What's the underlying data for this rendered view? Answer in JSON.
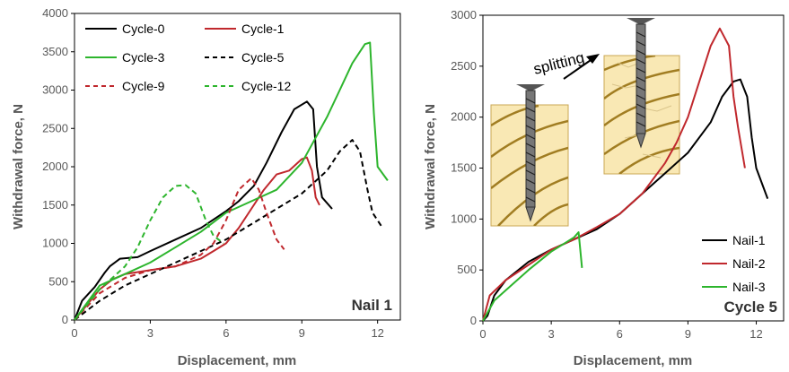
{
  "colors": {
    "black": "#000000",
    "red": "#c0282d",
    "green": "#2db52d",
    "wood": "#f9e8b4",
    "ring": "#a17d22",
    "nail": "#555555"
  },
  "chart_data": [
    {
      "type": "line",
      "corner_label": "Nail 1",
      "xlabel": "Displacement, mm",
      "ylabel": "Withdrawal force, N",
      "xlim": [
        0,
        12.9
      ],
      "ylim": [
        0,
        4000
      ],
      "xticks": [
        0,
        3,
        6,
        9,
        12
      ],
      "yticks": [
        0,
        500,
        1000,
        1500,
        2000,
        2500,
        3000,
        3500,
        4000
      ],
      "grid": false,
      "legend": "top-left, three rows of two",
      "series": [
        {
          "name": "Cycle-0",
          "color": "#000000",
          "dash": "solid",
          "x": [
            0,
            0.3,
            0.8,
            1.2,
            1.4,
            1.8,
            2.5,
            3,
            4,
            5,
            6,
            6.5,
            6.8,
            7.1,
            7.6,
            8.2,
            8.7,
            9.2,
            9.45,
            9.6,
            9.8,
            10.2
          ],
          "y": [
            0,
            250,
            430,
            620,
            700,
            800,
            820,
            900,
            1050,
            1200,
            1420,
            1550,
            1650,
            1750,
            2050,
            2450,
            2750,
            2850,
            2750,
            2000,
            1600,
            1450
          ]
        },
        {
          "name": "Cycle-1",
          "color": "#c0282d",
          "dash": "solid",
          "x": [
            0,
            0.5,
            1,
            1.5,
            2,
            3,
            4,
            5,
            5.5,
            6,
            6.5,
            7,
            7.5,
            8,
            8.5,
            9,
            9.2,
            9.4,
            9.55,
            9.7
          ],
          "y": [
            0,
            200,
            400,
            530,
            600,
            650,
            700,
            800,
            900,
            1000,
            1200,
            1450,
            1700,
            1900,
            1950,
            2100,
            2120,
            1950,
            1600,
            1500
          ]
        },
        {
          "name": "Cycle-3",
          "color": "#2db52d",
          "dash": "solid",
          "x": [
            0,
            1,
            2,
            3,
            4,
            5,
            6,
            7,
            8,
            9,
            10,
            10.5,
            11,
            11.5,
            11.7,
            11.85,
            12,
            12.4
          ],
          "y": [
            0,
            450,
            600,
            750,
            950,
            1150,
            1400,
            1550,
            1700,
            2050,
            2650,
            3000,
            3350,
            3600,
            3620,
            2700,
            2000,
            1820
          ]
        },
        {
          "name": "Cycle-5",
          "color": "#000000",
          "dash": "dash",
          "x": [
            0,
            1,
            2,
            3,
            4,
            5,
            6,
            7,
            8,
            9,
            10,
            10.5,
            11,
            11.3,
            11.6,
            11.8,
            12.2
          ],
          "y": [
            0,
            250,
            450,
            600,
            750,
            900,
            1050,
            1250,
            1450,
            1650,
            1950,
            2200,
            2350,
            2200,
            1700,
            1400,
            1200
          ]
        },
        {
          "name": "Cycle-9",
          "color": "#c0282d",
          "dash": "dash",
          "x": [
            0,
            1,
            2,
            3,
            4,
            5,
            5.5,
            6,
            6.5,
            7,
            7.3,
            7.6,
            8,
            8.3
          ],
          "y": [
            0,
            350,
            550,
            650,
            700,
            850,
            1000,
            1300,
            1700,
            1850,
            1700,
            1400,
            1050,
            920
          ]
        },
        {
          "name": "Cycle-12",
          "color": "#2db52d",
          "dash": "dash",
          "x": [
            0,
            1,
            1.5,
            2,
            2.5,
            3,
            3.5,
            4,
            4.4,
            4.8,
            5.2,
            5.5,
            5.9
          ],
          "y": [
            0,
            400,
            550,
            700,
            950,
            1300,
            1600,
            1750,
            1760,
            1650,
            1300,
            1100,
            1000
          ]
        }
      ]
    },
    {
      "type": "line",
      "corner_label": "Cycle 5",
      "annotation": "splitting",
      "xlabel": "Displacement, mm",
      "ylabel": "Withdrawal force, N",
      "xlim": [
        0,
        13.2
      ],
      "ylim": [
        0,
        3000
      ],
      "xticks": [
        0,
        3,
        6,
        9,
        12
      ],
      "yticks": [
        0,
        500,
        1000,
        1500,
        2000,
        2500,
        3000
      ],
      "grid": false,
      "legend": "bottom-right",
      "series": [
        {
          "name": "Nail-1",
          "color": "#000000",
          "dash": "solid",
          "x": [
            0,
            0.2,
            0.5,
            1,
            2,
            3,
            4,
            5,
            6,
            7,
            8,
            9,
            10,
            10.5,
            11,
            11.3,
            11.6,
            11.8,
            12,
            12.5
          ],
          "y": [
            0,
            50,
            250,
            400,
            580,
            700,
            800,
            900,
            1050,
            1250,
            1450,
            1650,
            1950,
            2200,
            2350,
            2370,
            2200,
            1800,
            1500,
            1200
          ]
        },
        {
          "name": "Nail-2",
          "color": "#c0282d",
          "dash": "solid",
          "x": [
            0,
            0.3,
            1,
            2,
            3,
            4,
            5,
            6,
            7,
            8,
            8.5,
            9,
            9.5,
            10,
            10.4,
            10.8,
            11,
            11.2,
            11.5
          ],
          "y": [
            0,
            250,
            400,
            550,
            700,
            800,
            920,
            1050,
            1250,
            1550,
            1750,
            2000,
            2350,
            2700,
            2870,
            2700,
            2200,
            1900,
            1500
          ]
        },
        {
          "name": "Nail-3",
          "color": "#2db52d",
          "dash": "solid",
          "x": [
            0,
            0.5,
            1,
            2,
            3,
            3.5,
            4,
            4.2,
            4.35
          ],
          "y": [
            0,
            200,
            300,
            500,
            680,
            750,
            820,
            870,
            520
          ]
        }
      ]
    }
  ]
}
